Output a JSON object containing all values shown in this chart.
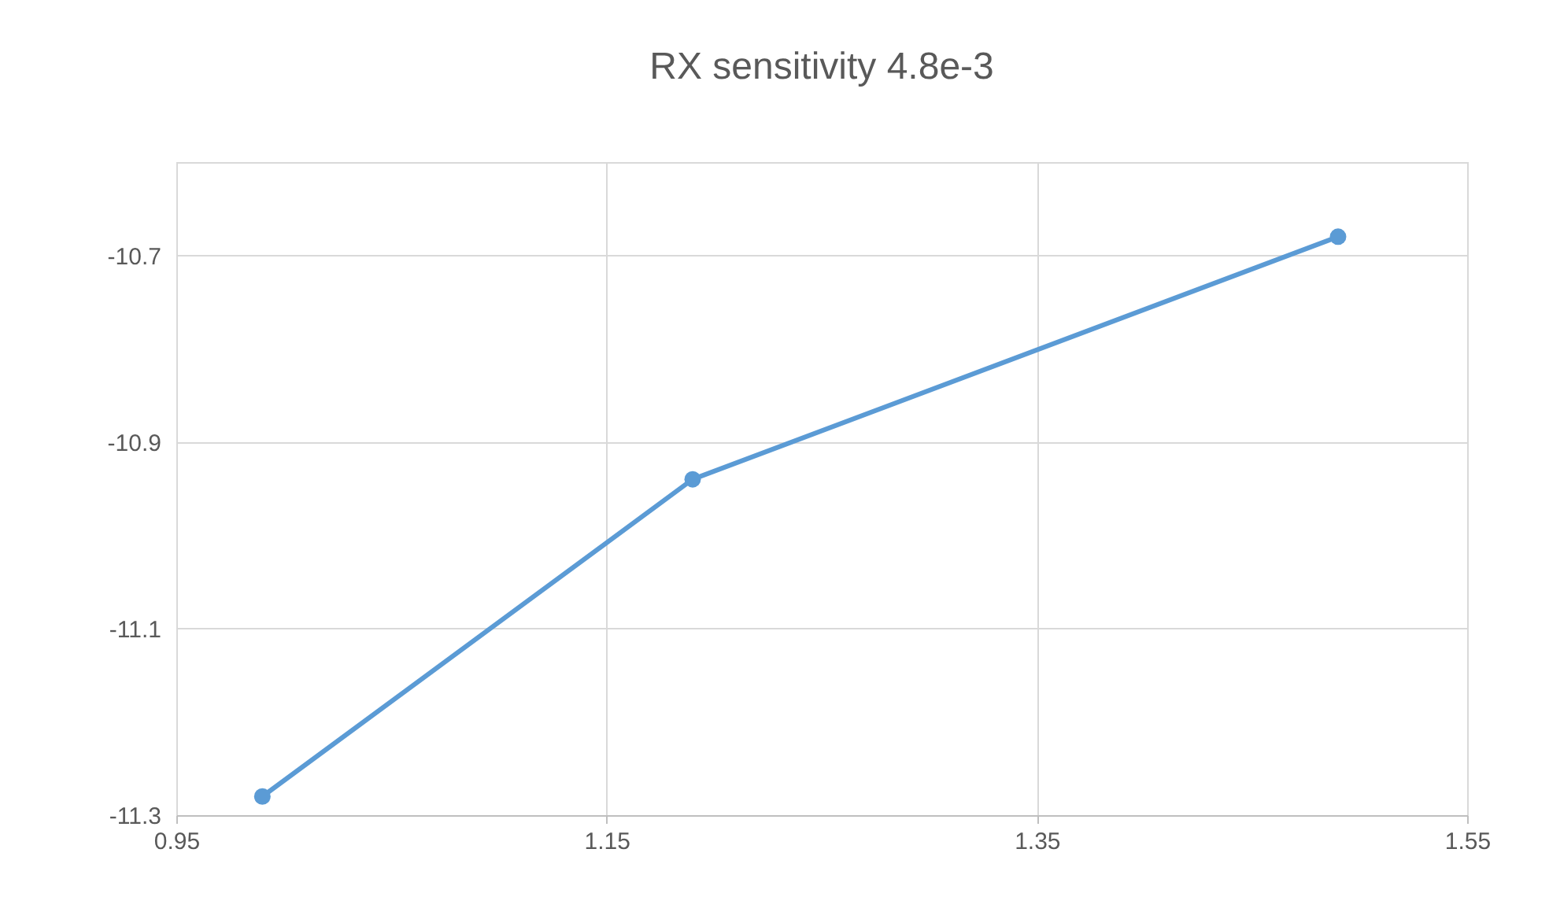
{
  "chart_data": {
    "type": "line",
    "title": "RX sensitivity 4.8e-3",
    "x": [
      0.99,
      1.19,
      1.49
    ],
    "series": [
      {
        "color": "#5b9bd5",
        "values": [
          -11.28,
          -10.94,
          -10.68
        ]
      }
    ],
    "xlim": [
      0.95,
      1.55
    ],
    "xticks": [
      0.95,
      1.15,
      1.35,
      1.55
    ],
    "ylim": [
      -11.3,
      -10.6
    ],
    "yticks": [
      -11.3,
      -11.1,
      -10.9,
      -10.7
    ],
    "grid": true,
    "marker": "circle",
    "line_style": "solid"
  }
}
